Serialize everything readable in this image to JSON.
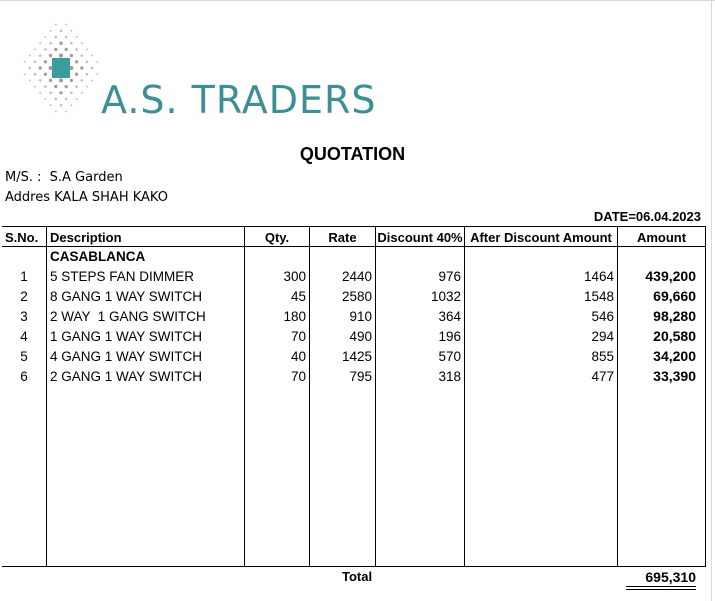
{
  "company": {
    "name": "A.S. TRADERS",
    "brand_color": "#3d8f95"
  },
  "document": {
    "title": "QUOTATION",
    "ms_label": "M/S. :",
    "ms_value": "S.A Garden",
    "address_label": "Addres",
    "address_value": "KALA SHAH KAKO",
    "date": "DATE=06.04.2023"
  },
  "table": {
    "headers": {
      "sno": "S.No.",
      "description": "Description",
      "qty": "Qty.",
      "rate": "Rate",
      "discount": "Discount 40%",
      "after_discount": "After Discount Amount",
      "amount": "Amount"
    },
    "section": "CASABLANCA",
    "rows": [
      {
        "sno": "1",
        "description": "5 STEPS FAN DIMMER",
        "qty": "300",
        "rate": "2440",
        "discount": "976",
        "after_discount": "1464",
        "amount": "439,200"
      },
      {
        "sno": "2",
        "description": "8 GANG 1 WAY SWITCH",
        "qty": "45",
        "rate": "2580",
        "discount": "1032",
        "after_discount": "1548",
        "amount": "69,660"
      },
      {
        "sno": "3",
        "description": "2 WAY  1 GANG SWITCH",
        "qty": "180",
        "rate": "910",
        "discount": "364",
        "after_discount": "546",
        "amount": "98,280"
      },
      {
        "sno": "4",
        "description": "1 GANG 1 WAY SWITCH",
        "qty": "70",
        "rate": "490",
        "discount": "196",
        "after_discount": "294",
        "amount": "20,580"
      },
      {
        "sno": "5",
        "description": "4 GANG 1 WAY SWITCH",
        "qty": "40",
        "rate": "1425",
        "discount": "570",
        "after_discount": "855",
        "amount": "34,200"
      },
      {
        "sno": "6",
        "description": "2 GANG 1 WAY SWITCH",
        "qty": "70",
        "rate": "795",
        "discount": "318",
        "after_discount": "477",
        "amount": "33,390"
      }
    ],
    "total_label": "Total",
    "total_value": "695,310"
  }
}
